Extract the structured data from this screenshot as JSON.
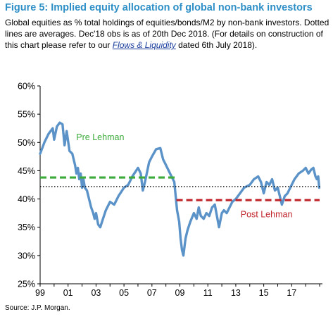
{
  "header": {
    "title": "Figure 5: Implied equity allocation of global non-bank investors",
    "subtitle_part1": "Global equities as % total holdings of equities/bonds/M2 by non-bank investors. Dotted lines are averages. Dec'18 obs is as of 20th Dec 2018. (For details on construction of this chart please refer to our ",
    "subtitle_link": "Flows & Liquidity",
    "subtitle_part2": " dated 6th July 2018)."
  },
  "footer": {
    "source": "Source: J.P. Morgan."
  },
  "colors": {
    "title": "#2e8fc6",
    "series_line": "#5b93c9",
    "pre_lehman": "#3cab3c",
    "post_lehman": "#c0262c",
    "overall_avg": "#000000",
    "link": "#1a3c9c"
  },
  "chart_data": {
    "type": "line",
    "title": "Figure 5: Implied equity allocation of global non-bank investors",
    "xlabel": "",
    "ylabel": "",
    "xlim": [
      1999,
      2019.2
    ],
    "ylim": [
      25,
      60
    ],
    "y_ticks": [
      "25%",
      "30%",
      "35%",
      "40%",
      "45%",
      "50%",
      "55%",
      "60%"
    ],
    "y_tick_values": [
      25,
      30,
      35,
      40,
      45,
      50,
      55,
      60
    ],
    "x_ticks": [
      "99",
      "01",
      "03",
      "05",
      "07",
      "09",
      "11",
      "13",
      "15",
      "17"
    ],
    "x_tick_values": [
      1999,
      2001,
      2003,
      2005,
      2007,
      2009,
      2011,
      2013,
      2015,
      2017
    ],
    "grid": false,
    "series": [
      {
        "name": "",
        "style": "solid",
        "x": [
          1999.0,
          1999.3,
          1999.6,
          1999.9,
          2000.0,
          2000.2,
          2000.4,
          2000.6,
          2000.75,
          2000.9,
          2001.1,
          2001.3,
          2001.5,
          2001.6,
          2001.7,
          2001.8,
          2001.9,
          2002.0,
          2002.1,
          2002.2,
          2002.35,
          2002.5,
          2002.65,
          2002.8,
          2002.9,
          2003.0,
          2003.15,
          2003.3,
          2003.5,
          2003.7,
          2004.0,
          2004.3,
          2004.6,
          2005.0,
          2005.3,
          2005.6,
          2006.0,
          2006.2,
          2006.35,
          2006.5,
          2006.8,
          2007.0,
          2007.3,
          2007.6,
          2007.8,
          2008.0,
          2008.2,
          2008.4,
          2008.6,
          2008.8,
          2008.95,
          2009.05,
          2009.15,
          2009.25,
          2009.4,
          2009.55,
          2009.75,
          2010.0,
          2010.2,
          2010.35,
          2010.5,
          2010.7,
          2010.9,
          2011.1,
          2011.3,
          2011.5,
          2011.65,
          2011.8,
          2012.0,
          2012.15,
          2012.35,
          2012.55,
          2012.75,
          2013.0,
          2013.3,
          2013.6,
          2014.0,
          2014.3,
          2014.6,
          2014.8,
          2015.0,
          2015.2,
          2015.4,
          2015.6,
          2015.8,
          2016.0,
          2016.15,
          2016.3,
          2016.5,
          2016.7,
          2016.9,
          2017.2,
          2017.5,
          2017.8,
          2018.0,
          2018.2,
          2018.4,
          2018.55,
          2018.7,
          2018.8,
          2018.9,
          2018.97
        ],
        "y": [
          48.0,
          50.0,
          51.5,
          52.5,
          50.5,
          52.8,
          53.5,
          53.2,
          49.5,
          52.0,
          48.5,
          48.0,
          46.0,
          44.5,
          45.5,
          43.5,
          44.5,
          42.0,
          43.5,
          42.0,
          41.5,
          40.0,
          38.5,
          37.5,
          36.5,
          37.5,
          35.5,
          35.0,
          36.5,
          38.0,
          39.5,
          39.0,
          40.5,
          42.0,
          42.5,
          44.0,
          45.5,
          44.5,
          41.5,
          43.0,
          46.5,
          47.5,
          48.8,
          49.0,
          47.0,
          46.0,
          45.0,
          44.0,
          43.0,
          38.0,
          36.0,
          33.0,
          31.0,
          30.0,
          33.0,
          34.5,
          36.0,
          37.5,
          36.5,
          38.5,
          37.0,
          36.5,
          37.5,
          37.0,
          38.5,
          39.0,
          37.0,
          35.0,
          37.5,
          38.0,
          37.5,
          38.5,
          39.5,
          40.0,
          41.0,
          42.0,
          42.5,
          43.5,
          44.0,
          43.0,
          41.0,
          43.0,
          42.5,
          43.5,
          41.5,
          42.0,
          40.5,
          39.0,
          40.5,
          41.0,
          42.0,
          43.5,
          44.5,
          45.0,
          45.5,
          44.5,
          45.2,
          45.5,
          44.0,
          43.5,
          44.0,
          42.0
        ]
      }
    ],
    "averages": [
      {
        "name": "Pre Lehman",
        "label": "Pre Lehman",
        "style": "dashed",
        "color": "#3cab3c",
        "value": 43.8,
        "x_start": 1999.0,
        "x_end": 2008.7
      },
      {
        "name": "Post Lehman",
        "label": "Post Lehman",
        "style": "dashed",
        "color": "#c0262c",
        "value": 39.8,
        "x_start": 2008.75,
        "x_end": 2019.0
      },
      {
        "name": "",
        "style": "dotted",
        "color": "#000000",
        "value": 42.2,
        "x_start": 1999.0,
        "x_end": 2019.1
      }
    ]
  }
}
